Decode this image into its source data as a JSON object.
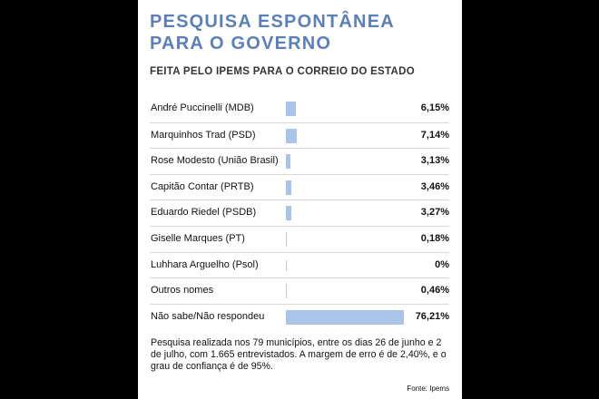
{
  "header": {
    "title_line1": "PESQUISA ESPONTÂNEA",
    "title_line2": "PARA O GOVERNO",
    "subtitle": "FEITA PELO IPEMS PARA O CORREIO DO ESTADO"
  },
  "chart_data": {
    "type": "bar",
    "title": "PESQUISA ESPONTÂNEA PARA O GOVERNO",
    "subtitle": "FEITA PELO IPEMS PARA O CORREIO DO ESTADO",
    "categories": [
      "André Puccinelli (MDB)",
      "Marquinhos Trad (PSD)",
      "Rose Modesto (União Brasil)",
      "Capitão Contar (PRTB)",
      "Eduardo Riedel (PSDB)",
      "Giselle Marques (PT)",
      "Luhhara Arguelho (Psol)",
      "Outros nomes",
      "Não sabe/Não respondeu"
    ],
    "values": [
      6.15,
      7.14,
      3.13,
      3.46,
      3.27,
      0.18,
      0,
      0.46,
      76.21
    ],
    "value_labels": [
      "6,15%",
      "7,14%",
      "3,13%",
      "3,46%",
      "3,27%",
      "0,18%",
      "0%",
      "0,46%",
      "76,21%"
    ],
    "bar_color": "#a9c4e8"
  },
  "footer": {
    "note": "Pesquisa realizada nos 79 municípios, entre os dias 26 de junho e 2 de julho, com 1.665 entrevistados. A margem de erro é de 2,40%, e o grau de confiança é de 95%.",
    "source": "Fonte: Ipems"
  },
  "colors": {
    "title": "#5b7fba",
    "background": "#000000"
  }
}
